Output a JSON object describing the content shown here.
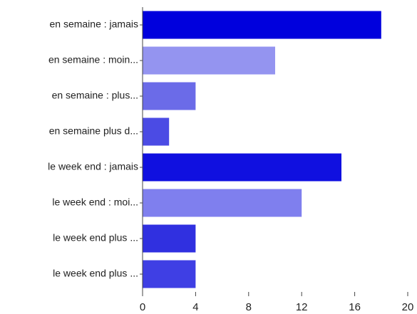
{
  "chart_data": {
    "type": "bar",
    "orientation": "horizontal",
    "categories": [
      "en semaine : jamais",
      "en semaine : moin...",
      "en semaine : plus...",
      "en semaine plus d...",
      "le week end : jamais",
      "le week end : moi...",
      "le week end plus ...",
      "le week end plus ..."
    ],
    "values": [
      18,
      10,
      4,
      2,
      15,
      12,
      4,
      4
    ],
    "colors": [
      "#0000dd",
      "#9494f0",
      "#6b6be8",
      "#4b4be4",
      "#1010e0",
      "#7f7fee",
      "#3030e0",
      "#3f3fe4"
    ],
    "xlim": [
      0,
      20
    ],
    "xticks": [
      0,
      4,
      8,
      12,
      16,
      20
    ],
    "grid": false
  }
}
